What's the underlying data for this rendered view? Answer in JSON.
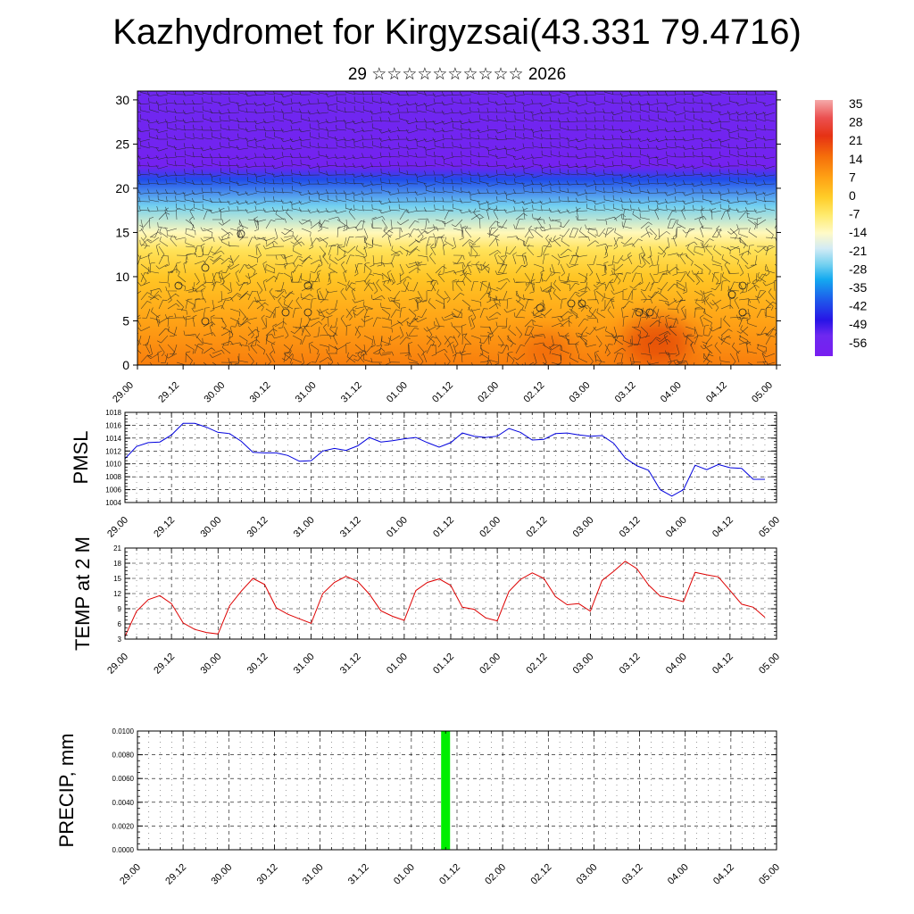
{
  "header": {
    "title": "Kazhydromet for Kirgyzsai(43.331 79.4716)",
    "subtitle": "29 ☆☆☆☆☆☆☆☆☆☆ 2026"
  },
  "colors": {
    "pmsl_line": "#0000dd",
    "temp_line": "#dd0000",
    "precip_bar": "#00ee00",
    "frame": "#000000",
    "grid": "#000000"
  },
  "time_ticks": [
    "29.00",
    "29.12",
    "30.00",
    "30.12",
    "31.00",
    "31.12",
    "01.00",
    "01.12",
    "02.00",
    "02.12",
    "03.00",
    "03.12",
    "04.00",
    "04.12",
    "05.00"
  ],
  "chart_data": [
    {
      "type": "heatmap",
      "name": "cross-section",
      "description_ylabel": "",
      "ylim": [
        0,
        31
      ],
      "y_ticks": [
        0,
        5,
        10,
        15,
        20,
        25,
        30
      ],
      "colorbar": {
        "labels": [
          "35",
          "28",
          "21",
          "14",
          "7",
          "0",
          "-7",
          "-14",
          "-21",
          "-28",
          "-35",
          "-42",
          "-49",
          "-56"
        ],
        "range": [
          -60,
          38
        ]
      },
      "level_temps": [
        {
          "level": 0,
          "temp": 14
        },
        {
          "level": 5,
          "temp": 8
        },
        {
          "level": 10,
          "temp": 2
        },
        {
          "level": 13,
          "temp": -4
        },
        {
          "level": 15,
          "temp": -12
        },
        {
          "level": 18,
          "temp": -25
        },
        {
          "level": 21,
          "temp": -40
        },
        {
          "level": 22.5,
          "temp": -58
        },
        {
          "level": 25,
          "temp": -55
        },
        {
          "level": 31,
          "temp": -53
        }
      ]
    },
    {
      "type": "line",
      "name": "PMSL",
      "ylabel": "PMSL",
      "ylim": [
        1004,
        1018
      ],
      "y_ticks": [
        "1004",
        "1006",
        "1008",
        "1010",
        "1012",
        "1014",
        "1016",
        "1018"
      ],
      "x_hours": [
        0,
        3,
        6,
        9,
        12,
        15,
        18,
        21,
        24,
        27,
        30,
        33,
        36,
        39,
        42,
        45,
        48,
        51,
        54,
        57,
        60,
        63,
        66,
        69,
        72,
        75,
        78,
        81,
        84,
        87,
        90,
        93,
        96,
        99,
        102,
        105,
        108,
        111,
        114,
        117,
        120,
        123,
        126,
        129,
        132,
        135,
        138,
        141,
        144,
        147,
        150,
        153,
        156,
        159,
        162,
        165
      ],
      "values": [
        1010.8,
        1012.7,
        1013.3,
        1013.4,
        1014.5,
        1016.3,
        1016.3,
        1015.7,
        1014.9,
        1014.7,
        1013.5,
        1011.8,
        1011.7,
        1011.7,
        1011.3,
        1010.4,
        1010.5,
        1012.0,
        1012.4,
        1012.1,
        1012.8,
        1014.1,
        1013.4,
        1013.6,
        1013.9,
        1014.1,
        1013.3,
        1012.6,
        1013.3,
        1014.8,
        1014.3,
        1014.1,
        1014.3,
        1015.5,
        1014.9,
        1013.7,
        1013.8,
        1014.7,
        1014.8,
        1014.5,
        1014.3,
        1014.4,
        1013.2,
        1010.9,
        1009.7,
        1009.0,
        1006.0,
        1005.0,
        1006.0,
        1009.8,
        1009.1,
        1009.9,
        1009.4,
        1009.3,
        1007.6,
        1007.6
      ]
    },
    {
      "type": "line",
      "name": "TEMP at 2 M",
      "ylabel": "TEMP at 2 M",
      "ylim": [
        3,
        21
      ],
      "y_ticks": [
        "3",
        "6",
        "9",
        "12",
        "15",
        "18",
        "21"
      ],
      "x_hours": [
        0,
        3,
        6,
        9,
        12,
        15,
        18,
        21,
        24,
        27,
        30,
        33,
        36,
        39,
        42,
        45,
        48,
        51,
        54,
        57,
        60,
        63,
        66,
        69,
        72,
        75,
        78,
        81,
        84,
        87,
        90,
        93,
        96,
        99,
        102,
        105,
        108,
        111,
        114,
        117,
        120,
        123,
        126,
        129,
        132,
        135,
        138,
        141,
        144,
        147,
        150,
        153,
        156,
        159,
        162,
        165
      ],
      "values": [
        3.5,
        8.5,
        10.8,
        11.6,
        10.0,
        6.2,
        4.9,
        4.3,
        4.0,
        9.6,
        12.5,
        15.0,
        13.8,
        9.2,
        7.9,
        7.0,
        6.1,
        12.0,
        14.2,
        15.4,
        14.4,
        11.9,
        8.6,
        7.5,
        6.7,
        12.6,
        14.2,
        14.9,
        13.6,
        9.3,
        8.9,
        7.2,
        6.6,
        12.4,
        14.8,
        16.1,
        15.0,
        11.4,
        9.8,
        10.0,
        8.5,
        14.6,
        16.4,
        18.4,
        16.9,
        13.7,
        11.5,
        11.0,
        10.4,
        16.2,
        15.7,
        15.3,
        12.6,
        9.9,
        9.3,
        7.3
      ]
    },
    {
      "type": "bar",
      "name": "PRECIP, mm",
      "ylabel": "PRECIP, mm",
      "ylim": [
        0,
        0.01
      ],
      "y_ticks": [
        "0.0000",
        "0.0020",
        "0.0040",
        "0.0060",
        "0.0080",
        "0.0100"
      ],
      "x_hours": [
        81
      ],
      "values": [
        0.01
      ]
    }
  ]
}
